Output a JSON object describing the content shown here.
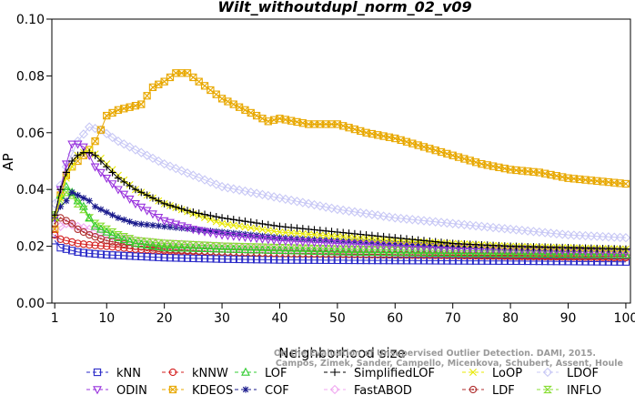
{
  "chart_data": {
    "type": "line",
    "title": "Wilt_withoutdupl_norm_02_v09",
    "xlabel": "Neighborhood size",
    "ylabel": "AP",
    "xlim": [
      1,
      100
    ],
    "ylim": [
      0.0,
      0.1
    ],
    "xticks": [
      1,
      10,
      20,
      30,
      40,
      50,
      60,
      70,
      80,
      90,
      100
    ],
    "yticks": [
      "0.00",
      "0.02",
      "0.04",
      "0.06",
      "0.08",
      "0.10"
    ],
    "grid": false,
    "legend_position": "bottom",
    "watermark": [
      "On the Evaluation of Unsupervised Outlier Detection. DAMI, 2015.",
      "Campos, Zimek, Sander, Campello, Micenkova, Schubert, Assent, Houle"
    ],
    "series": [
      {
        "name": "kNN",
        "color": "#2a2ac8",
        "marker": "square",
        "points": [
          [
            1,
            0.022
          ],
          [
            2,
            0.0195
          ],
          [
            3,
            0.019
          ],
          [
            4,
            0.0185
          ],
          [
            5,
            0.018
          ],
          [
            7,
            0.0175
          ],
          [
            10,
            0.017
          ],
          [
            15,
            0.0165
          ],
          [
            20,
            0.016
          ],
          [
            30,
            0.0155
          ],
          [
            40,
            0.0152
          ],
          [
            60,
            0.015
          ],
          [
            80,
            0.0148
          ],
          [
            100,
            0.0145
          ]
        ]
      },
      {
        "name": "kNNW",
        "color": "#d42020",
        "marker": "circle",
        "points": [
          [
            1,
            0.024
          ],
          [
            2,
            0.0225
          ],
          [
            3,
            0.022
          ],
          [
            5,
            0.021
          ],
          [
            7,
            0.0205
          ],
          [
            10,
            0.02
          ],
          [
            15,
            0.019
          ],
          [
            20,
            0.0185
          ],
          [
            30,
            0.018
          ],
          [
            40,
            0.0175
          ],
          [
            60,
            0.017
          ],
          [
            80,
            0.0165
          ],
          [
            100,
            0.016
          ]
        ]
      },
      {
        "name": "LOF",
        "color": "#33cc33",
        "marker": "triangle-up",
        "points": [
          [
            1,
            0.03
          ],
          [
            2,
            0.038
          ],
          [
            3,
            0.041
          ],
          [
            4,
            0.039
          ],
          [
            5,
            0.036
          ],
          [
            6,
            0.034
          ],
          [
            7,
            0.03
          ],
          [
            8,
            0.027
          ],
          [
            10,
            0.025
          ],
          [
            12,
            0.023
          ],
          [
            15,
            0.021
          ],
          [
            20,
            0.0195
          ],
          [
            30,
            0.019
          ],
          [
            50,
            0.018
          ],
          [
            70,
            0.0175
          ],
          [
            100,
            0.017
          ]
        ]
      },
      {
        "name": "SimplifiedLOF",
        "color": "#000000",
        "marker": "plus",
        "points": [
          [
            1,
            0.031
          ],
          [
            2,
            0.04
          ],
          [
            3,
            0.046
          ],
          [
            4,
            0.05
          ],
          [
            5,
            0.052
          ],
          [
            6,
            0.053
          ],
          [
            7,
            0.053
          ],
          [
            8,
            0.052
          ],
          [
            9,
            0.05
          ],
          [
            10,
            0.048
          ],
          [
            12,
            0.044
          ],
          [
            15,
            0.04
          ],
          [
            18,
            0.037
          ],
          [
            20,
            0.035
          ],
          [
            25,
            0.032
          ],
          [
            30,
            0.03
          ],
          [
            40,
            0.027
          ],
          [
            50,
            0.025
          ],
          [
            60,
            0.023
          ],
          [
            70,
            0.021
          ],
          [
            80,
            0.02
          ],
          [
            90,
            0.0195
          ],
          [
            100,
            0.019
          ]
        ]
      },
      {
        "name": "LoOP",
        "color": "#e8e800",
        "marker": "cross",
        "points": [
          [
            1,
            0.03
          ],
          [
            3,
            0.044
          ],
          [
            5,
            0.052
          ],
          [
            7,
            0.054
          ],
          [
            9,
            0.051
          ],
          [
            12,
            0.045
          ],
          [
            15,
            0.04
          ],
          [
            20,
            0.035
          ],
          [
            30,
            0.028
          ],
          [
            40,
            0.025
          ],
          [
            60,
            0.022
          ],
          [
            80,
            0.02
          ],
          [
            100,
            0.019
          ]
        ]
      },
      {
        "name": "LDOF",
        "color": "#c8c8f5",
        "marker": "diamond",
        "points": [
          [
            1,
            0.035
          ],
          [
            3,
            0.048
          ],
          [
            5,
            0.057
          ],
          [
            7,
            0.062
          ],
          [
            9,
            0.061
          ],
          [
            12,
            0.057
          ],
          [
            15,
            0.054
          ],
          [
            20,
            0.049
          ],
          [
            25,
            0.045
          ],
          [
            30,
            0.041
          ],
          [
            40,
            0.037
          ],
          [
            50,
            0.033
          ],
          [
            60,
            0.03
          ],
          [
            70,
            0.028
          ],
          [
            80,
            0.026
          ],
          [
            90,
            0.024
          ],
          [
            100,
            0.023
          ]
        ]
      },
      {
        "name": "ODIN",
        "color": "#9933dd",
        "marker": "triangle-down",
        "points": [
          [
            1,
            0.03
          ],
          [
            2,
            0.04
          ],
          [
            3,
            0.049
          ],
          [
            4,
            0.056
          ],
          [
            5,
            0.056
          ],
          [
            6,
            0.055
          ],
          [
            7,
            0.052
          ],
          [
            8,
            0.048
          ],
          [
            10,
            0.044
          ],
          [
            12,
            0.04
          ],
          [
            15,
            0.035
          ],
          [
            20,
            0.029
          ],
          [
            25,
            0.026
          ],
          [
            30,
            0.024
          ],
          [
            40,
            0.022
          ],
          [
            50,
            0.021
          ],
          [
            70,
            0.0195
          ],
          [
            100,
            0.018
          ]
        ]
      },
      {
        "name": "KDEOS",
        "color": "#e8a800",
        "marker": "square-x",
        "points": [
          [
            1,
            0.026
          ],
          [
            2,
            0.038
          ],
          [
            3,
            0.045
          ],
          [
            4,
            0.048
          ],
          [
            5,
            0.05
          ],
          [
            6,
            0.052
          ],
          [
            7,
            0.054
          ],
          [
            8,
            0.057
          ],
          [
            9,
            0.061
          ],
          [
            10,
            0.066
          ],
          [
            12,
            0.068
          ],
          [
            14,
            0.069
          ],
          [
            16,
            0.07
          ],
          [
            18,
            0.076
          ],
          [
            20,
            0.078
          ],
          [
            22,
            0.081
          ],
          [
            24,
            0.081
          ],
          [
            26,
            0.078
          ],
          [
            28,
            0.075
          ],
          [
            30,
            0.072
          ],
          [
            32,
            0.07
          ],
          [
            35,
            0.067
          ],
          [
            38,
            0.064
          ],
          [
            40,
            0.065
          ],
          [
            45,
            0.063
          ],
          [
            50,
            0.063
          ],
          [
            55,
            0.06
          ],
          [
            60,
            0.058
          ],
          [
            65,
            0.055
          ],
          [
            70,
            0.052
          ],
          [
            75,
            0.049
          ],
          [
            80,
            0.047
          ],
          [
            85,
            0.046
          ],
          [
            90,
            0.044
          ],
          [
            95,
            0.043
          ],
          [
            100,
            0.042
          ]
        ]
      },
      {
        "name": "COF",
        "color": "#1a1a8c",
        "marker": "asterisk",
        "points": [
          [
            1,
            0.03
          ],
          [
            2,
            0.034
          ],
          [
            3,
            0.036
          ],
          [
            4,
            0.039
          ],
          [
            5,
            0.038
          ],
          [
            6,
            0.037
          ],
          [
            7,
            0.036
          ],
          [
            8,
            0.034
          ],
          [
            10,
            0.032
          ],
          [
            12,
            0.03
          ],
          [
            15,
            0.028
          ],
          [
            20,
            0.027
          ],
          [
            25,
            0.026
          ],
          [
            30,
            0.025
          ],
          [
            40,
            0.023
          ],
          [
            50,
            0.022
          ],
          [
            60,
            0.021
          ],
          [
            70,
            0.02
          ],
          [
            80,
            0.0195
          ],
          [
            90,
            0.019
          ],
          [
            100,
            0.019
          ]
        ]
      },
      {
        "name": "FastABOD",
        "color": "#f0a8f0",
        "marker": "diamond",
        "points": [
          [
            1,
            0.025
          ],
          [
            2,
            0.027
          ],
          [
            3,
            0.028
          ],
          [
            5,
            0.027
          ],
          [
            7,
            0.026
          ],
          [
            10,
            0.024
          ],
          [
            15,
            0.022
          ],
          [
            20,
            0.021
          ],
          [
            30,
            0.02
          ],
          [
            40,
            0.019
          ],
          [
            60,
            0.018
          ],
          [
            80,
            0.0175
          ],
          [
            100,
            0.017
          ]
        ]
      },
      {
        "name": "LDF",
        "color": "#b03030",
        "marker": "circle-dot",
        "points": [
          [
            1,
            0.028
          ],
          [
            2,
            0.03
          ],
          [
            3,
            0.029
          ],
          [
            4,
            0.028
          ],
          [
            5,
            0.026
          ],
          [
            7,
            0.024
          ],
          [
            10,
            0.022
          ],
          [
            15,
            0.02
          ],
          [
            20,
            0.019
          ],
          [
            30,
            0.018
          ],
          [
            40,
            0.0175
          ],
          [
            60,
            0.017
          ],
          [
            80,
            0.0168
          ],
          [
            100,
            0.0165
          ]
        ]
      },
      {
        "name": "INFLO",
        "color": "#88dd33",
        "marker": "hourglass",
        "points": [
          [
            1,
            0.031
          ],
          [
            2,
            0.036
          ],
          [
            3,
            0.039
          ],
          [
            4,
            0.038
          ],
          [
            5,
            0.035
          ],
          [
            6,
            0.033
          ],
          [
            7,
            0.03
          ],
          [
            8,
            0.028
          ],
          [
            10,
            0.026
          ],
          [
            12,
            0.024
          ],
          [
            15,
            0.022
          ],
          [
            20,
            0.021
          ],
          [
            30,
            0.02
          ],
          [
            50,
            0.019
          ],
          [
            70,
            0.0185
          ],
          [
            100,
            0.018
          ]
        ]
      }
    ]
  }
}
